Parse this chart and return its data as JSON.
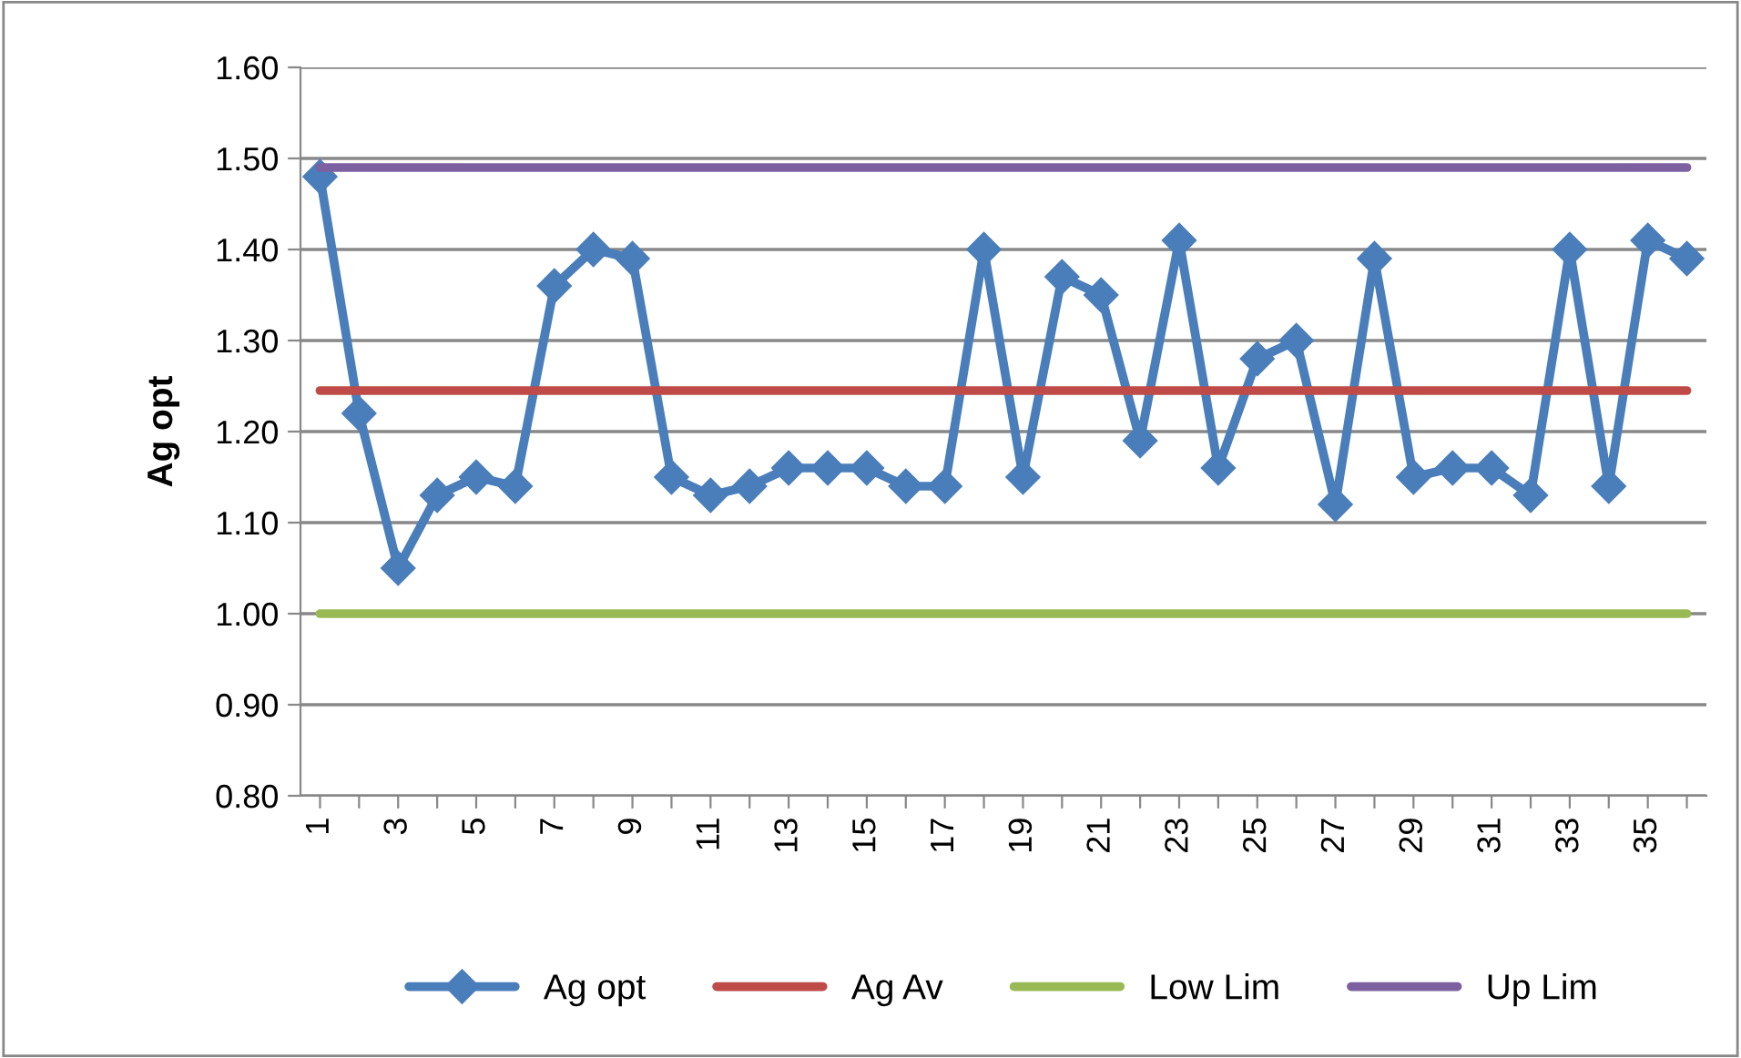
{
  "chart_data": {
    "type": "line",
    "ylabel": "Ag opt",
    "categories": [
      "1",
      null,
      "3",
      null,
      "5",
      null,
      "7",
      null,
      "9",
      null,
      "11",
      null,
      "13",
      null,
      "15",
      null,
      "17",
      null,
      "19",
      null,
      "21",
      null,
      "23",
      null,
      "25",
      null,
      "27",
      null,
      "29",
      null,
      "31",
      null,
      "33",
      null,
      "35",
      null
    ],
    "series": [
      {
        "name": "Ag opt",
        "color": "#4a7ebb",
        "marker": "diamond",
        "values": [
          1.48,
          1.22,
          1.05,
          1.13,
          1.15,
          1.14,
          1.36,
          1.4,
          1.39,
          1.15,
          1.13,
          1.14,
          1.16,
          1.16,
          1.16,
          1.14,
          1.14,
          1.4,
          1.15,
          1.37,
          1.35,
          1.19,
          1.41,
          1.16,
          1.28,
          1.3,
          1.12,
          1.39,
          1.15,
          1.16,
          1.16,
          1.13,
          1.4,
          1.14,
          1.41,
          1.39
        ]
      },
      {
        "name": "Ag Av",
        "color": "#be4b48",
        "marker": "none",
        "values": [
          1.245,
          1.245,
          1.245,
          1.245,
          1.245,
          1.245,
          1.245,
          1.245,
          1.245,
          1.245,
          1.245,
          1.245,
          1.245,
          1.245,
          1.245,
          1.245,
          1.245,
          1.245,
          1.245,
          1.245,
          1.245,
          1.245,
          1.245,
          1.245,
          1.245,
          1.245,
          1.245,
          1.245,
          1.245,
          1.245,
          1.245,
          1.245,
          1.245,
          1.245,
          1.245,
          1.245
        ]
      },
      {
        "name": "Low Lim",
        "color": "#98b954",
        "marker": "none",
        "values": [
          1.0,
          1.0,
          1.0,
          1.0,
          1.0,
          1.0,
          1.0,
          1.0,
          1.0,
          1.0,
          1.0,
          1.0,
          1.0,
          1.0,
          1.0,
          1.0,
          1.0,
          1.0,
          1.0,
          1.0,
          1.0,
          1.0,
          1.0,
          1.0,
          1.0,
          1.0,
          1.0,
          1.0,
          1.0,
          1.0,
          1.0,
          1.0,
          1.0,
          1.0,
          1.0,
          1.0
        ]
      },
      {
        "name": "Up Lim",
        "color": "#7d60a0",
        "marker": "none",
        "values": [
          1.49,
          1.49,
          1.49,
          1.49,
          1.49,
          1.49,
          1.49,
          1.49,
          1.49,
          1.49,
          1.49,
          1.49,
          1.49,
          1.49,
          1.49,
          1.49,
          1.49,
          1.49,
          1.49,
          1.49,
          1.49,
          1.49,
          1.49,
          1.49,
          1.49,
          1.49,
          1.49,
          1.49,
          1.49,
          1.49,
          1.49,
          1.49,
          1.49,
          1.49,
          1.49,
          1.49
        ]
      }
    ],
    "ylim": [
      0.8,
      1.6
    ],
    "yticks": [
      {
        "value": 0.8,
        "label": "0.80"
      },
      {
        "value": 0.9,
        "label": "0.90"
      },
      {
        "value": 1.0,
        "label": "1.00"
      },
      {
        "value": 1.1,
        "label": "1.10"
      },
      {
        "value": 1.2,
        "label": "1.20"
      },
      {
        "value": 1.3,
        "label": "1.30"
      },
      {
        "value": 1.4,
        "label": "1.40"
      },
      {
        "value": 1.5,
        "label": "1.50"
      },
      {
        "value": 1.6,
        "label": "1.60"
      }
    ],
    "grid": "y",
    "legend": "bottom",
    "line_style": "solid"
  }
}
